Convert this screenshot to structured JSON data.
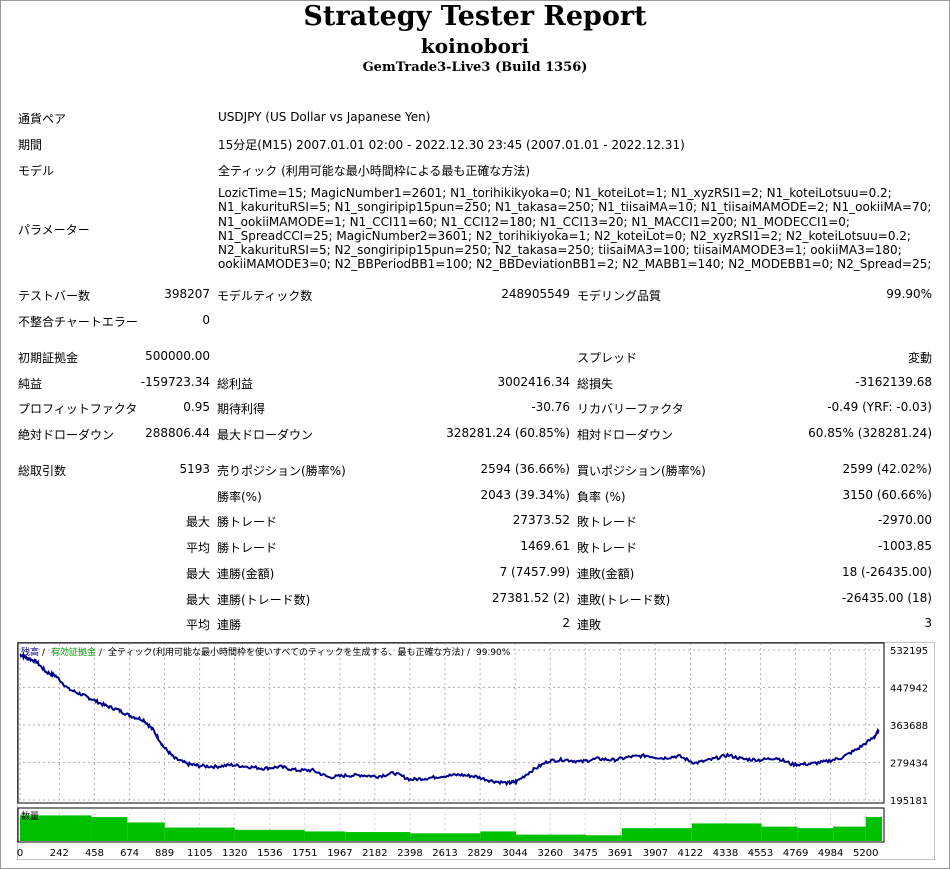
{
  "report": {
    "title": "Strategy Tester Report",
    "ea_name": "koinobori",
    "server": "GemTrade3-Live3 (Build 1356)"
  },
  "settings": {
    "symbol_label": "通貨ペア",
    "symbol_value": "USDJPY (US Dollar vs Japanese Yen)",
    "period_label": "期間",
    "period_value": "15分足(M15) 2007.01.01 02:00 - 2022.12.30 23:45 (2007.01.01 - 2022.12.31)",
    "model_label": "モデル",
    "model_value": "全ティック (利用可能な最小時間枠による最も正確な方法)",
    "params_label": "パラメーター",
    "params_value": "LozicTime=15; MagicNumber1=2601; N1_torihikikyoka=0; N1_koteiLot=1; N1_xyzRSI1=2; N1_koteiLotsuu=0.2; N1_kakurituRSI=5; N1_songiripip15pun=250; N1_takasa=250; N1_tiisaiMA=10; N1_tiisaiMAMODE=2; N1_ookiiMA=70; N1_ookiiMAMODE=1; N1_CCI11=60; N1_CCI12=180; N1_CCI13=20; N1_MACCI1=200; N1_MODECCI1=0; N1_SpreadCCI=25; MagicNumber2=3601; N2_torihikiyoka=1; N2_koteiLot=0; N2_xyzRSI1=2; N2_koteiLotsuu=0.2; N2_kakurituRSI=5; N2_songiripip15pun=250; N2_takasa=250; tiisaiMA3=100; tiisaiMAMODE3=1; ookiiMA3=180; ookiiMAMODE3=0; N2_BBPeriodBB1=100; N2_BBDeviationBB1=2; N2_MABB1=140; N2_MODEBB1=0; N2_Spread=25;"
  },
  "stats": {
    "bars_label": "テストバー数",
    "bars_value": "398207",
    "ticks_label": "モデルティック数",
    "ticks_value": "248905549",
    "quality_label": "モデリング品質",
    "quality_value": "99.90%",
    "mismatch_label": "不整合チャートエラー",
    "mismatch_value": "0",
    "deposit_label": "初期証拠金",
    "deposit_value": "500000.00",
    "spread_label": "スプレッド",
    "spread_value": "変動",
    "net_label": "純益",
    "net_value": "-159723.34",
    "gross_profit_label": "総利益",
    "gross_profit_value": "3002416.34",
    "gross_loss_label": "総損失",
    "gross_loss_value": "-3162139.68",
    "pf_label": "プロフィットファクタ",
    "pf_value": "0.95",
    "payoff_label": "期待利得",
    "payoff_value": "-30.76",
    "recovery_label": "リカバリーファクタ",
    "recovery_value": "-0.49 (YRF: -0.03)",
    "abs_dd_label": "絶対ドローダウン",
    "abs_dd_value": "288806.44",
    "max_dd_label": "最大ドローダウン",
    "max_dd_value": "328281.24 (60.85%)",
    "rel_dd_label": "相対ドローダウン",
    "rel_dd_value": "60.85% (328281.24)",
    "total_label": "総取引数",
    "total_value": "5193",
    "short_label": "売りポジション(勝率%)",
    "short_value": "2594 (36.66%)",
    "long_label": "買いポジション(勝率%)",
    "long_value": "2599 (42.02%)",
    "winrate_label": "勝率(%)",
    "winrate_value": "2043 (39.34%)",
    "lossrate_label": "負率 (%)",
    "lossrate_value": "3150 (60.66%)",
    "max_label": "最大",
    "avg_label": "平均",
    "win_trade_label": "勝トレード",
    "loss_trade_label": "敗トレード",
    "max_win_value": "27373.52",
    "max_loss_value": "-2970.00",
    "avg_win_value": "1469.61",
    "avg_loss_value": "-1003.85",
    "cw_money_label": "連勝(金額)",
    "cw_money_value": "7 (7457.99)",
    "cl_money_label": "連敗(金額)",
    "cl_money_value": "18 (-26435.00)",
    "cw_trades_label": "連勝(トレード数)",
    "cw_trades_value": "27381.52 (2)",
    "cl_trades_label": "連敗(トレード数)",
    "cl_trades_value": "-26435.00 (18)",
    "aw_label": "連勝",
    "aw_value": "2",
    "al_label": "連敗",
    "al_value": "3"
  },
  "chart_data": {
    "type": "line",
    "legend": [
      {
        "text": "残高",
        "color": "#00008b"
      },
      {
        "text": "有効証拠金",
        "color": "#00a000"
      },
      {
        "text": "全ティック(利用可能な最小時間枠を使いすべてのティックを生成する、最も正確な方法)",
        "color": "#000000"
      },
      {
        "text": "99.90%",
        "color": "#000000"
      }
    ],
    "separator": "/",
    "y_ticks": [
      "532195",
      "447942",
      "363688",
      "279434",
      "195181"
    ],
    "x_ticks": [
      "0",
      "242",
      "458",
      "674",
      "889",
      "1105",
      "1320",
      "1536",
      "1751",
      "1967",
      "2182",
      "2398",
      "2613",
      "2829",
      "3044",
      "3260",
      "3475",
      "3691",
      "3907",
      "4122",
      "4338",
      "4553",
      "4769",
      "4984",
      "5200"
    ],
    "volume_label": "数量",
    "ylim": [
      195181,
      532195
    ],
    "xlim": [
      0,
      5300
    ],
    "balance_color": "#00008b",
    "volume_color": "#00c000",
    "balance_series": {
      "x": [
        0,
        40,
        100,
        160,
        220,
        300,
        380,
        440,
        520,
        600,
        680,
        760,
        820,
        880,
        950,
        1030,
        1100,
        1200,
        1300,
        1400,
        1500,
        1600,
        1700,
        1800,
        1900,
        2000,
        2100,
        2200,
        2300,
        2400,
        2500,
        2600,
        2700,
        2800,
        2900,
        3000,
        3050,
        3150,
        3250,
        3350,
        3450,
        3550,
        3650,
        3750,
        3850,
        3950,
        4050,
        4150,
        4250,
        4350,
        4450,
        4550,
        4650,
        4750,
        4850,
        4950,
        5050,
        5150,
        5250,
        5280
      ],
      "y": [
        522000,
        515000,
        506000,
        483000,
        474000,
        444000,
        432000,
        422000,
        408000,
        398000,
        384000,
        375000,
        352000,
        316000,
        289000,
        276000,
        272000,
        270000,
        274000,
        270000,
        266000,
        270000,
        262000,
        262000,
        246000,
        250000,
        251000,
        248000,
        256000,
        241000,
        244000,
        249000,
        252000,
        248000,
        238000,
        233000,
        236000,
        262000,
        283000,
        286000,
        281000,
        288000,
        285000,
        292000,
        295000,
        289000,
        294000,
        278000,
        286000,
        296000,
        287000,
        285000,
        290000,
        275000,
        276000,
        281000,
        290000,
        310000,
        336000,
        350000
      ]
    },
    "volume_series": {
      "x": [
        0,
        440,
        660,
        890,
        1320,
        1750,
        2000,
        2400,
        2830,
        3050,
        3480,
        3700,
        4130,
        4560,
        4780,
        5000,
        5200
      ],
      "level": [
        0.8,
        0.75,
        0.58,
        0.42,
        0.35,
        0.3,
        0.28,
        0.24,
        0.3,
        0.2,
        0.18,
        0.4,
        0.55,
        0.45,
        0.4,
        0.45,
        0.75
      ]
    }
  }
}
